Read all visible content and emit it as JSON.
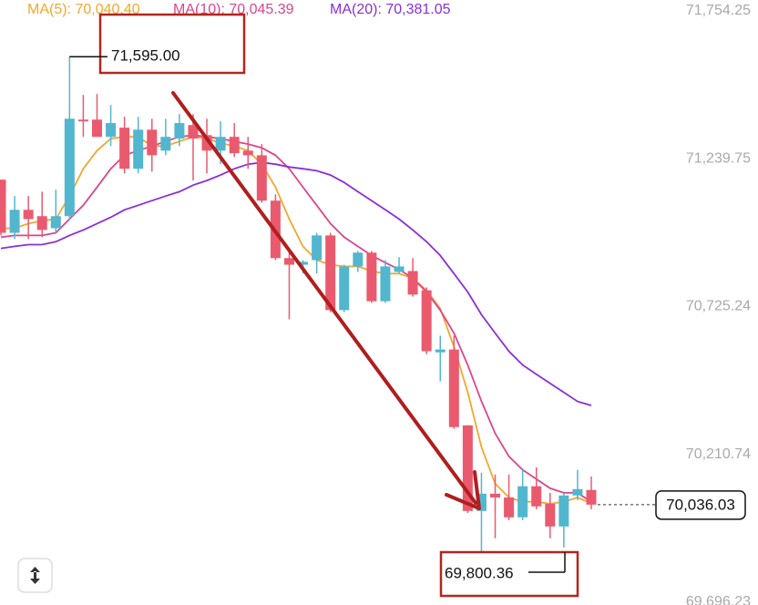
{
  "chart_data": {
    "type": "candlestick",
    "ylim": [
      69696.23,
      71754.25
    ],
    "yticks": [
      {
        "value": 71754.25,
        "label": "71,754.25"
      },
      {
        "value": 71239.75,
        "label": "71,239.75"
      },
      {
        "value": 70725.24,
        "label": "70,725.24"
      },
      {
        "value": 70210.74,
        "label": "70,210.74"
      },
      {
        "value": 69696.23,
        "label": "69,696.23"
      }
    ],
    "candles": {
      "up_color": "#52b6cf",
      "down_color": "#ea5a6e",
      "open": [
        71167,
        70982,
        71062,
        71040,
        70998,
        71040,
        71376,
        71376,
        71316,
        71348,
        71205,
        71341,
        71268,
        71310,
        71357,
        71322,
        71268,
        71316,
        71268,
        71252,
        71094,
        70894,
        70871,
        70887,
        70973,
        70713,
        70865,
        70913,
        70744,
        70846,
        70849,
        70782,
        70566,
        70576,
        70312,
        70014,
        70074,
        70061,
        69992,
        70100,
        70039,
        69960,
        70068,
        70087
      ],
      "high": [
        71167,
        71110,
        71110,
        71125,
        71132,
        71595,
        71462,
        71465,
        71427,
        71386,
        71386,
        71379,
        71379,
        71395,
        71395,
        71379,
        71370,
        71364,
        71316,
        71291,
        71116,
        70928,
        70887,
        70982,
        70982,
        70871,
        70919,
        70919,
        70887,
        70897,
        70894,
        70792,
        70624,
        70624,
        70312,
        70147,
        70141,
        70141,
        70157,
        70166,
        70077,
        70077,
        70157,
        70134
      ],
      "low": [
        70973,
        70960,
        70960,
        70967,
        70982,
        71030,
        71316,
        71316,
        71284,
        71189,
        71189,
        71195,
        71252,
        71284,
        71164,
        71189,
        71221,
        71246,
        71205,
        71087,
        70887,
        70681,
        70840,
        70840,
        70706,
        70706,
        70846,
        70738,
        70738,
        70840,
        70760,
        70560,
        70465,
        70300,
        70007,
        69800.36,
        69919,
        69982,
        69982,
        70020,
        69919,
        69887,
        70052,
        70020
      ],
      "close": [
        70982,
        71062,
        71030,
        70992,
        71040,
        71379,
        71370,
        71316,
        71364,
        71205,
        71341,
        71252,
        71316,
        71364,
        71310,
        71268,
        71316,
        71259,
        71252,
        71094,
        70894,
        70871,
        70881,
        70973,
        70713,
        70865,
        70913,
        70744,
        70865,
        70865,
        70767,
        70570,
        70576,
        70306,
        70014,
        70074,
        70061,
        69992,
        70100,
        70030,
        69960,
        70068,
        70090,
        70036.03
      ]
    },
    "series": [
      {
        "name": "MA(5): 70,040.40",
        "color": "#f0a830",
        "values": [
          70998,
          70998,
          71014,
          71024,
          71030,
          71110,
          71205,
          71268,
          71310,
          71316,
          71316,
          71284,
          71284,
          71300,
          71316,
          71310,
          71294,
          71284,
          71268,
          71221,
          71141,
          71030,
          70935,
          70887,
          70871,
          70865,
          70865,
          70849,
          70840,
          70840,
          70824,
          70782,
          70719,
          70585,
          70427,
          70236,
          70109,
          70061,
          70046,
          70046,
          70039,
          70046,
          70061,
          70040.4
        ]
      },
      {
        "name": "MA(10): 70,045.39",
        "color": "#d9468c",
        "values": [
          70967,
          70973,
          70973,
          70973,
          70982,
          71030,
          71078,
          71141,
          71205,
          71252,
          71268,
          71284,
          71300,
          71316,
          71322,
          71316,
          71310,
          71300,
          71291,
          71278,
          71252,
          71205,
          71141,
          71078,
          71014,
          70967,
          70935,
          70903,
          70878,
          70855,
          70824,
          70776,
          70713,
          70633,
          70522,
          70395,
          70284,
          70204,
          70157,
          70125,
          70093,
          70077,
          70077,
          70045.39
        ]
      },
      {
        "name": "MA(20): 70,381.05",
        "color": "#8a2fd6",
        "values": [
          70928,
          70935,
          70941,
          70941,
          70951,
          70973,
          70992,
          71014,
          71036,
          71062,
          71078,
          71094,
          71110,
          71125,
          71148,
          71164,
          71183,
          71205,
          71221,
          71227,
          71221,
          71211,
          71205,
          71198,
          71183,
          71157,
          71125,
          71094,
          71062,
          71030,
          70992,
          70951,
          70903,
          70840,
          70776,
          70697,
          70633,
          70570,
          70522,
          70490,
          70458,
          70427,
          70395,
          70381.05
        ]
      }
    ],
    "annotations": {
      "high_label": "71,595.00",
      "low_label": "69,800.36",
      "last_label": "70,036.03"
    }
  }
}
